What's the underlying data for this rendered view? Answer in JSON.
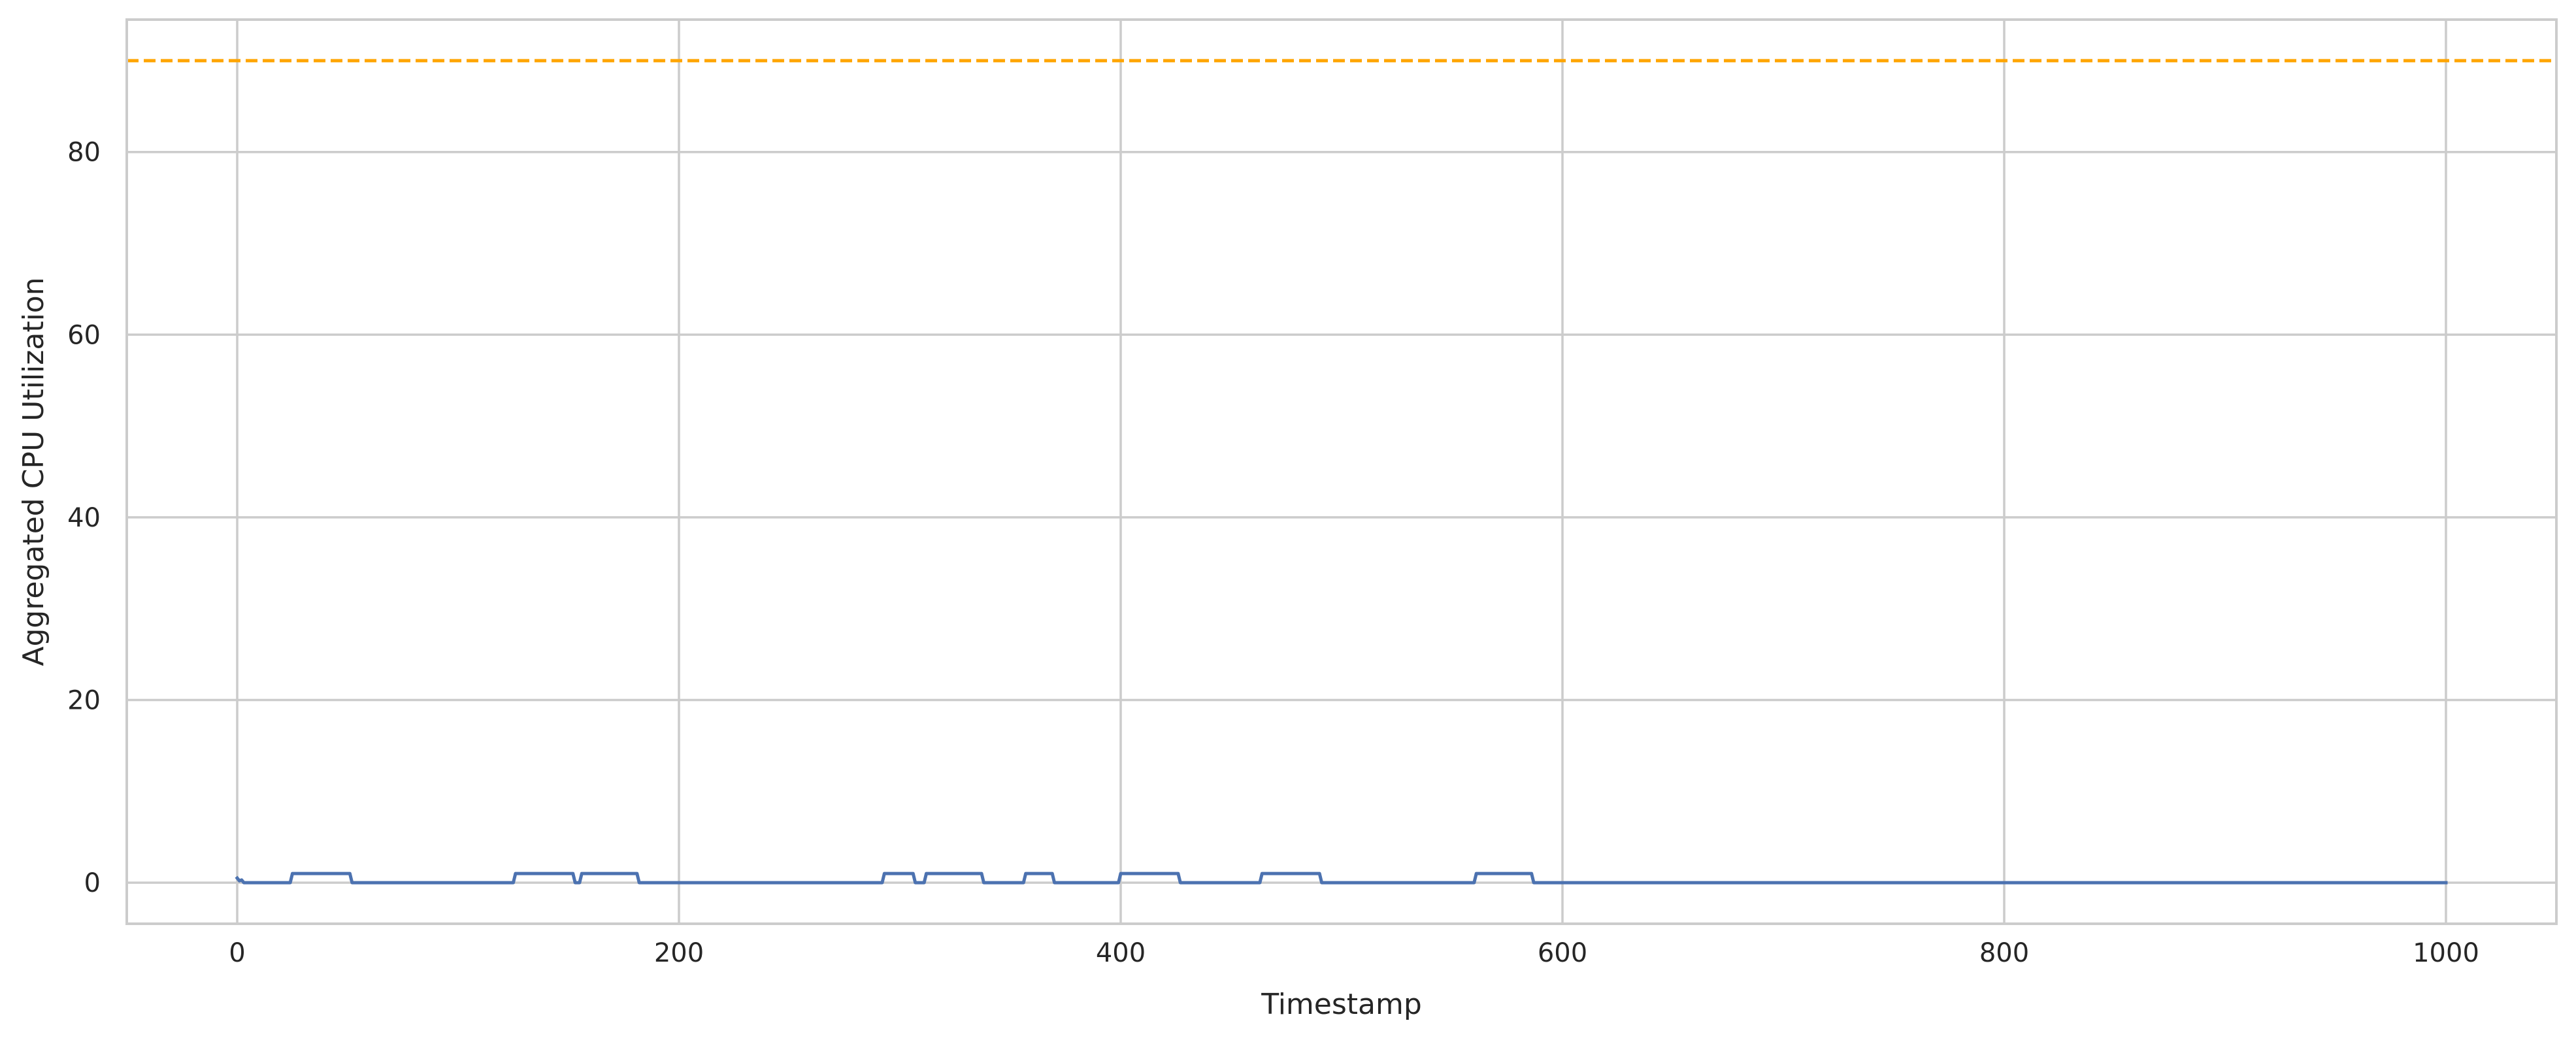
{
  "chart_data": {
    "type": "line",
    "title": "",
    "xlabel": "Timestamp",
    "ylabel": "Aggregated CPU Utilization",
    "xlim": [
      -50,
      1050
    ],
    "ylim": [
      -4.5,
      94.5
    ],
    "xticks": [
      0,
      200,
      400,
      600,
      800,
      1000
    ],
    "yticks": [
      0,
      20,
      40,
      60,
      80
    ],
    "grid": true,
    "legend": "none",
    "threshold": {
      "value": 90,
      "style": "dashed",
      "color": "#FFA500"
    },
    "series": [
      {
        "color": "#4C72B0",
        "points": [
          [
            0,
            0.5
          ],
          [
            1,
            0.2
          ],
          [
            2,
            0.3
          ],
          [
            3,
            0.0
          ],
          [
            24,
            0.0
          ],
          [
            25,
            1.0
          ],
          [
            51,
            1.0
          ],
          [
            52,
            0.0
          ],
          [
            125,
            0.0
          ],
          [
            126,
            1.0
          ],
          [
            152,
            1.0
          ],
          [
            153,
            0.0
          ],
          [
            155,
            0.0
          ],
          [
            156,
            1.0
          ],
          [
            181,
            1.0
          ],
          [
            182,
            0.0
          ],
          [
            292,
            0.0
          ],
          [
            293,
            1.0
          ],
          [
            306,
            1.0
          ],
          [
            307,
            0.0
          ],
          [
            311,
            0.0
          ],
          [
            312,
            1.0
          ],
          [
            337,
            1.0
          ],
          [
            338,
            0.0
          ],
          [
            356,
            0.0
          ],
          [
            357,
            1.0
          ],
          [
            369,
            1.0
          ],
          [
            370,
            0.0
          ],
          [
            399,
            0.0
          ],
          [
            400,
            1.0
          ],
          [
            426,
            1.0
          ],
          [
            427,
            0.0
          ],
          [
            463,
            0.0
          ],
          [
            464,
            1.0
          ],
          [
            490,
            1.0
          ],
          [
            491,
            0.0
          ],
          [
            560,
            0.0
          ],
          [
            561,
            1.0
          ],
          [
            586,
            1.0
          ],
          [
            587,
            0.0
          ],
          [
            1000,
            0.0
          ]
        ]
      }
    ]
  }
}
